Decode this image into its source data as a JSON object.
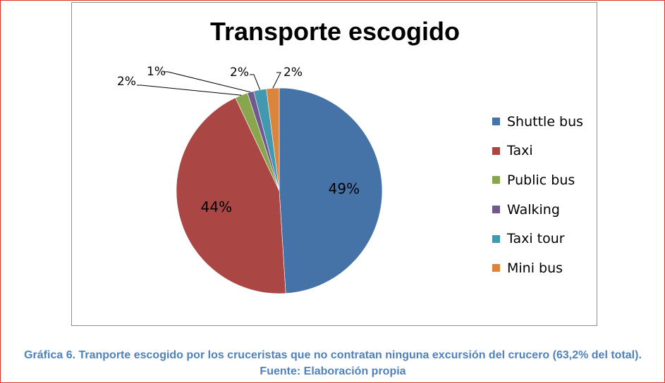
{
  "chart_data": {
    "type": "pie",
    "title": "Transporte escogido",
    "slices": [
      {
        "label": "Shuttle bus",
        "value": 49,
        "display": "49%",
        "color": "#4572a7"
      },
      {
        "label": "Taxi",
        "value": 44,
        "display": "44%",
        "color": "#aa4643"
      },
      {
        "label": "Public bus",
        "value": 2,
        "display": "2%",
        "color": "#89a54e"
      },
      {
        "label": "Walking",
        "value": 1,
        "display": "1%",
        "color": "#71588f"
      },
      {
        "label": "Taxi tour",
        "value": 2,
        "display": "2%",
        "color": "#4198af"
      },
      {
        "label": "Mini bus",
        "value": 2,
        "display": "2%",
        "color": "#db843d"
      }
    ],
    "legend_position": "right"
  },
  "caption": "Gráfica 6. Tranporte escogido por los cruceristas que no contratan ninguna excursión del crucero (63,2% del total). Fuente: Elaboración propia"
}
